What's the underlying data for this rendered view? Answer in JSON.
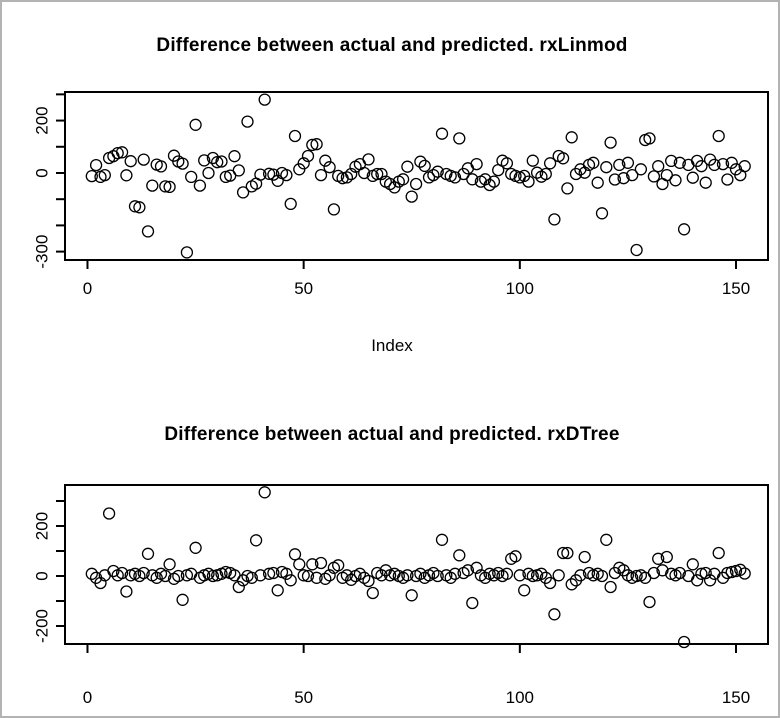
{
  "figure": {
    "background_color": "#ffffff",
    "border_color": "#b3b3b3",
    "axis_color": "#000000",
    "point_color": "#000000"
  },
  "chart_data": [
    {
      "type": "scatter",
      "title": "Difference between actual and predicted. rxLinmod",
      "xlabel": "Index",
      "ylabel": "",
      "marker": "open-circle",
      "grid": false,
      "legend": "none",
      "x_ticks": [
        0,
        50,
        100,
        150
      ],
      "y_ticks": [
        {
          "value": 300,
          "label": ""
        },
        {
          "value": 200,
          "label": "200"
        },
        {
          "value": 100,
          "label": ""
        },
        {
          "value": 0,
          "label": "0"
        },
        {
          "value": -100,
          "label": ""
        },
        {
          "value": -200,
          "label": ""
        },
        {
          "value": -300,
          "label": "-300"
        }
      ],
      "xlim": [
        -5.2,
        157.4
      ],
      "ylim": [
        -332,
        309
      ],
      "x_start": 1,
      "y": [
        -12,
        30,
        -15,
        -8,
        57,
        64,
        76,
        79,
        -9,
        45,
        -127,
        -131,
        51,
        -223,
        -48,
        32,
        25,
        -51,
        -53,
        66,
        44,
        36,
        -303,
        -15,
        184,
        -48,
        48,
        0,
        57,
        41,
        44,
        -15,
        -10,
        64,
        10,
        -74,
        196,
        -51,
        -41,
        -6,
        280,
        -3,
        -6,
        -30,
        0,
        -8,
        -118,
        141,
        14,
        37,
        65,
        107,
        110,
        -8,
        47,
        22,
        -139,
        -11,
        -20,
        -17,
        -4,
        24,
        34,
        0,
        52,
        -11,
        -4,
        -4,
        -33,
        -42,
        -55,
        -33,
        -24,
        24,
        -90,
        -42,
        43,
        27,
        -17,
        -8,
        5,
        150,
        -4,
        -11,
        -17,
        132,
        -4,
        18,
        -24,
        34,
        -33,
        -24,
        -46,
        -33,
        11,
        47,
        37,
        -4,
        -11,
        -17,
        -11,
        -33,
        47,
        1,
        -14,
        -4,
        37,
        -177,
        65,
        56,
        -59,
        136,
        -4,
        14,
        1,
        31,
        39,
        -37,
        -154,
        22,
        116,
        -25,
        31,
        -20,
        39,
        -8,
        -294,
        14,
        126,
        132,
        -13,
        26,
        -42,
        -8,
        46,
        -28,
        39,
        -215,
        31,
        -18,
        46,
        26,
        -37,
        51,
        31,
        141,
        34,
        -25,
        39,
        14,
        -8,
        26
      ]
    },
    {
      "type": "scatter",
      "title": "Difference between actual and predicted. rxDTree",
      "xlabel": "",
      "ylabel": "",
      "marker": "open-circle",
      "grid": false,
      "legend": "none",
      "x_ticks": [
        0,
        50,
        100,
        150
      ],
      "y_ticks": [
        {
          "value": 300,
          "label": ""
        },
        {
          "value": 200,
          "label": "200"
        },
        {
          "value": 100,
          "label": ""
        },
        {
          "value": 0,
          "label": "0"
        },
        {
          "value": -100,
          "label": ""
        },
        {
          "value": -200,
          "label": "-200"
        }
      ],
      "xlim": [
        -5.2,
        157.4
      ],
      "ylim": [
        -272,
        364
      ],
      "x_start": 1,
      "y": [
        9,
        -7,
        -28,
        3,
        250,
        20,
        3,
        12,
        -62,
        3,
        9,
        0,
        12,
        89,
        3,
        -7,
        9,
        0,
        47,
        -11,
        0,
        -95,
        3,
        9,
        113,
        -7,
        3,
        9,
        0,
        3,
        9,
        16,
        12,
        3,
        -44,
        -17,
        0,
        -7,
        143,
        3,
        335,
        9,
        12,
        -57,
        16,
        9,
        -17,
        87,
        47,
        3,
        0,
        47,
        -7,
        52,
        -11,
        3,
        33,
        43,
        -7,
        3,
        -15,
        0,
        9,
        -7,
        -20,
        -68,
        12,
        3,
        23,
        3,
        9,
        0,
        -7,
        3,
        -77,
        0,
        9,
        -7,
        3,
        12,
        0,
        145,
        3,
        -7,
        9,
        83,
        12,
        23,
        -108,
        33,
        3,
        -7,
        9,
        3,
        12,
        0,
        9,
        69,
        79,
        3,
        -57,
        9,
        0,
        3,
        9,
        -7,
        -28,
        -153,
        3,
        92,
        92,
        -33,
        -17,
        3,
        76,
        12,
        3,
        9,
        0,
        145,
        -44,
        12,
        33,
        23,
        3,
        -7,
        0,
        3,
        -7,
        -104,
        12,
        69,
        23,
        76,
        9,
        3,
        12,
        -264,
        0,
        47,
        -17,
        9,
        12,
        -17,
        9,
        92,
        -7,
        12,
        16,
        20,
        25,
        10
      ]
    }
  ]
}
